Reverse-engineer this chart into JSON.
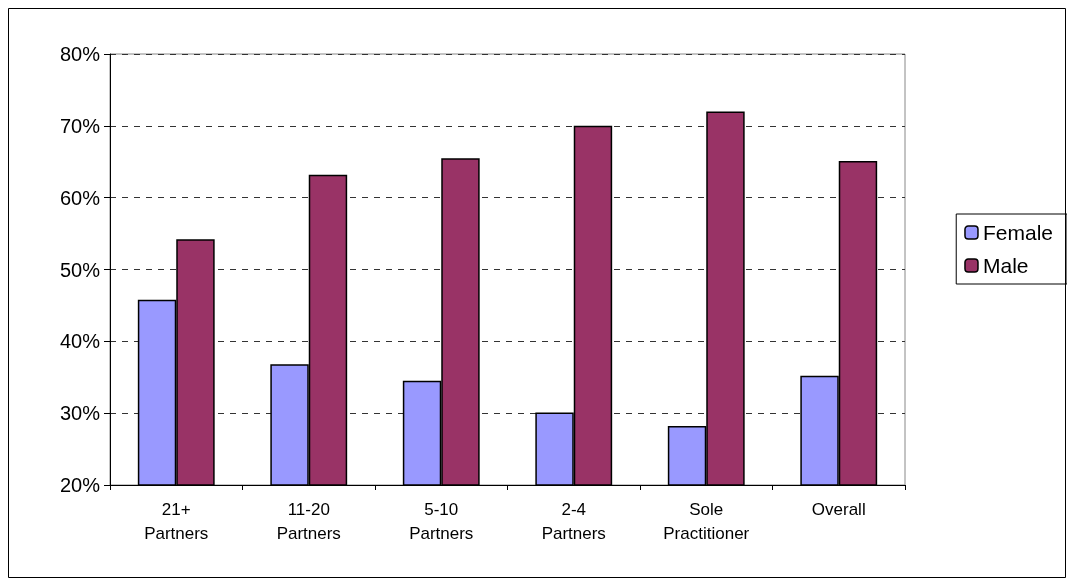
{
  "chart_data": {
    "type": "bar",
    "categories": [
      "21+\nPartners",
      "11-20\nPartners",
      "5-10\nPartners",
      "2-4\nPartners",
      "Sole\nPractitioner",
      "Overall"
    ],
    "series": [
      {
        "name": "Female",
        "color": "#9999ff",
        "values": [
          45.8,
          36.8,
          34.5,
          30.1,
          28.2,
          35.2
        ]
      },
      {
        "name": "Male",
        "color": "#993366",
        "values": [
          54.2,
          63.2,
          65.5,
          70.0,
          72.0,
          65.1
        ]
      }
    ],
    "ylim": [
      20,
      80
    ],
    "yticks": [
      {
        "value": 20,
        "label": "20%"
      },
      {
        "value": 30,
        "label": "30%"
      },
      {
        "value": 40,
        "label": "40%"
      },
      {
        "value": 50,
        "label": "50%"
      },
      {
        "value": 60,
        "label": "60%"
      },
      {
        "value": 70,
        "label": "70%"
      },
      {
        "value": 80,
        "label": "80%"
      }
    ],
    "grid": "y",
    "legend": "right"
  }
}
